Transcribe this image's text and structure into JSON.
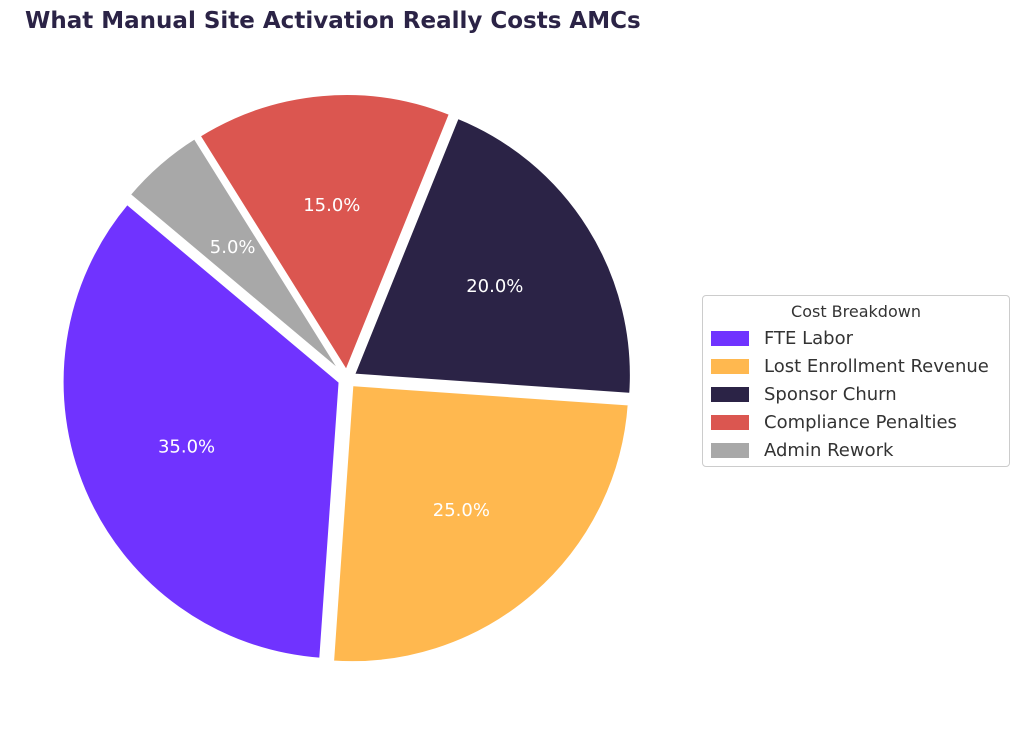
{
  "title": "What Manual Site Activation Really Costs AMCs",
  "chart_data": {
    "type": "pie",
    "title": "What Manual Site Activation Really Costs AMCs",
    "slices": [
      {
        "label": "FTE Labor",
        "value": 35.0,
        "pct_label": "35.0%",
        "color": "#7033ff"
      },
      {
        "label": "Lost Enrollment Revenue",
        "value": 25.0,
        "pct_label": "25.0%",
        "color": "#ffb84f"
      },
      {
        "label": "Sponsor Churn",
        "value": 20.0,
        "pct_label": "20.0%",
        "color": "#2b2346"
      },
      {
        "label": "Compliance Penalties",
        "value": 15.0,
        "pct_label": "15.0%",
        "color": "#db5650"
      },
      {
        "label": "Admin Rework",
        "value": 5.0,
        "pct_label": "5.0%",
        "color": "#a8a8a8"
      }
    ],
    "start_angle_deg": 140,
    "direction": "counterclockwise",
    "exploded": true,
    "legend": {
      "title": "Cost Breakdown",
      "placement": "center-right"
    }
  }
}
